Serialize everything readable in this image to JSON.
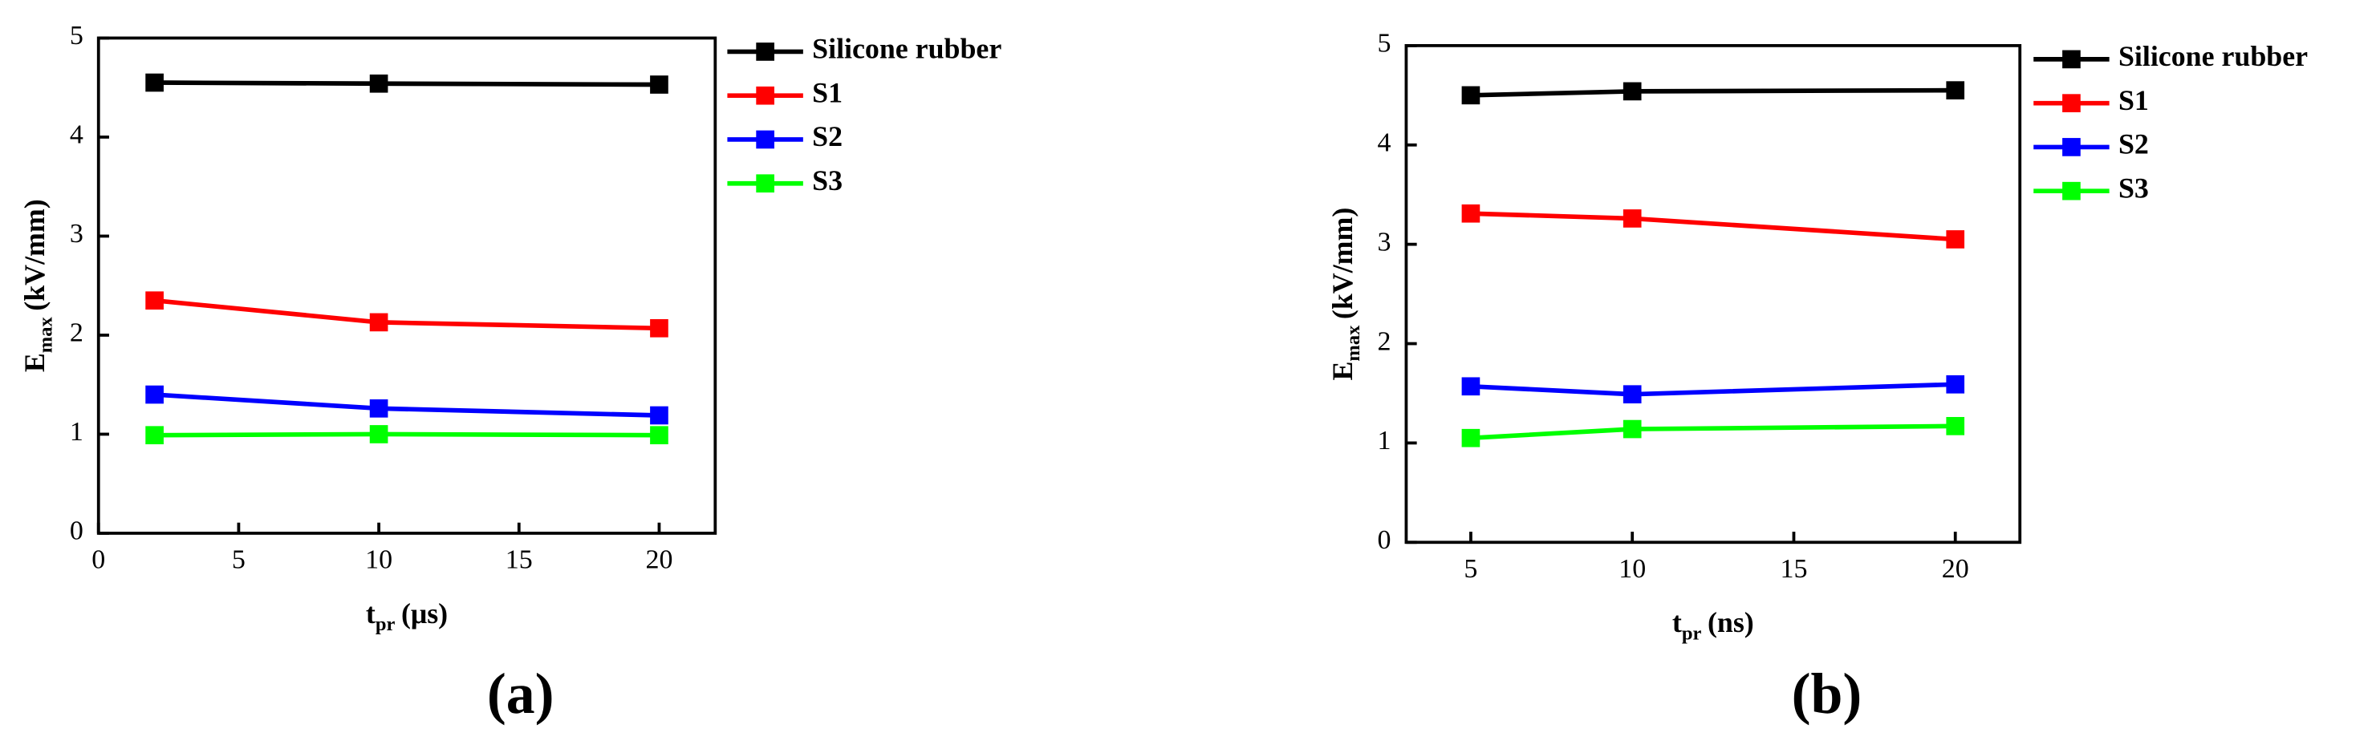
{
  "chart_data": [
    {
      "type": "line",
      "panel_label": "(a)",
      "x_label": {
        "main": "t",
        "sub": "pr",
        "unit": "(μs)"
      },
      "y_label": {
        "main": "E",
        "sub": "max",
        "unit": "(kV/mm)"
      },
      "x": [
        2,
        10,
        20
      ],
      "xlim": [
        0,
        22
      ],
      "xticks": [
        0,
        5,
        10,
        15,
        20
      ],
      "ylim": [
        0,
        5
      ],
      "yticks": [
        0,
        1,
        2,
        3,
        4,
        5
      ],
      "legend": "right-outside",
      "series": [
        {
          "name": "Silicone rubber",
          "color": "#000000",
          "values": [
            4.55,
            4.54,
            4.53
          ]
        },
        {
          "name": "S1",
          "color": "#ff0000",
          "values": [
            2.35,
            2.13,
            2.07
          ]
        },
        {
          "name": "S2",
          "color": "#0000ff",
          "values": [
            1.4,
            1.26,
            1.19
          ]
        },
        {
          "name": "S3",
          "color": "#00ff00",
          "values": [
            0.99,
            1.0,
            0.99
          ]
        }
      ]
    },
    {
      "type": "line",
      "panel_label": "(b)",
      "x_label": {
        "main": "t",
        "sub": "pr",
        "unit": "(ns)"
      },
      "y_label": {
        "main": "E",
        "sub": "max",
        "unit": "(kV/mm)"
      },
      "x": [
        5,
        10,
        20
      ],
      "xlim": [
        3,
        22
      ],
      "xticks": [
        5,
        10,
        15,
        20
      ],
      "ylim": [
        0,
        5
      ],
      "yticks": [
        0,
        1,
        2,
        3,
        4,
        5
      ],
      "legend": "right-outside",
      "series": [
        {
          "name": "Silicone rubber",
          "color": "#000000",
          "values": [
            4.5,
            4.54,
            4.55
          ]
        },
        {
          "name": "S1",
          "color": "#ff0000",
          "values": [
            3.31,
            3.26,
            3.05
          ]
        },
        {
          "name": "S2",
          "color": "#0000ff",
          "values": [
            1.57,
            1.49,
            1.59
          ]
        },
        {
          "name": "S3",
          "color": "#00ff00",
          "values": [
            1.05,
            1.14,
            1.17
          ]
        }
      ]
    }
  ]
}
